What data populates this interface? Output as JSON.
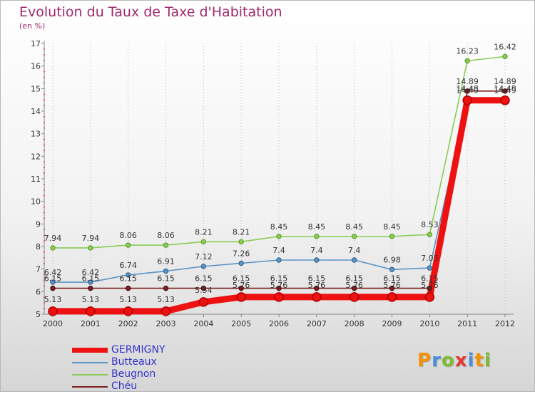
{
  "header": {
    "title": "Evolution du Taux de Taxe d'Habitation",
    "subtitle": "(en %)"
  },
  "logo": {
    "text": "Proxiti",
    "colors": [
      "#f39200",
      "#4a90d9",
      "#7dbb2f",
      "#e53935",
      "#4a90d9",
      "#f39200",
      "#7dbb2f"
    ]
  },
  "chart_data": {
    "type": "line",
    "title": "Evolution du Taux de Taxe d'Habitation",
    "subtitle": "(en %)",
    "xlabel": "",
    "ylabel": "",
    "x": [
      2000,
      2001,
      2002,
      2003,
      2004,
      2005,
      2006,
      2007,
      2008,
      2009,
      2010,
      2011,
      2012
    ],
    "ylim": [
      5,
      17
    ],
    "yticks": [
      5,
      6,
      7,
      8,
      9,
      10,
      11,
      12,
      13,
      14,
      15,
      16,
      17
    ],
    "grid": "vertical dotted",
    "legend_position": "bottom-left",
    "series": [
      {
        "name": "Chéu",
        "color": "#7a1e1e",
        "values": [
          6.15,
          6.15,
          6.15,
          6.15,
          6.15,
          6.15,
          6.15,
          6.15,
          6.15,
          6.15,
          6.15,
          14.89,
          14.89
        ],
        "labels": [
          "6.15",
          "6.15",
          "6.15",
          "6.15",
          "6.15",
          "6.15",
          "6.15",
          "6.15",
          "6.15",
          "6.15",
          "6.15",
          "14.89",
          "14.89"
        ]
      },
      {
        "name": "Beugnon",
        "color": "#88cc55",
        "values": [
          7.94,
          7.94,
          8.06,
          8.06,
          8.21,
          8.21,
          8.45,
          8.45,
          8.45,
          8.45,
          8.53,
          16.23,
          16.42
        ],
        "labels": [
          "7.94",
          "7.94",
          "8.06",
          "8.06",
          "8.21",
          "8.21",
          "8.45",
          "8.45",
          "8.45",
          "8.45",
          "8.53",
          "16.23",
          "16.42"
        ]
      },
      {
        "name": "Butteaux",
        "color": "#5b93c4",
        "values": [
          6.42,
          6.42,
          6.74,
          6.91,
          7.12,
          7.26,
          7.4,
          7.4,
          7.4,
          6.98,
          7.05,
          14.49,
          14.49
        ],
        "labels": [
          "6.42",
          "6.42",
          "6.74",
          "6.91",
          "7.12",
          "7.26",
          "7.4",
          "7.4",
          "7.4",
          "6.98",
          "7.05",
          "14.49",
          "14.49"
        ]
      },
      {
        "name": "GERMIGNY",
        "color": "#ee1111",
        "values": [
          5.13,
          5.13,
          5.13,
          5.13,
          5.54,
          5.76,
          5.76,
          5.76,
          5.76,
          5.76,
          5.76,
          14.48,
          14.48
        ],
        "labels": [
          "5.13",
          "5.13",
          "5.13",
          "5.13",
          "5.54",
          "5.76",
          "5.76",
          "5.76",
          "5.76",
          "5.76",
          "5.76",
          "14.48",
          "14.48"
        ]
      }
    ],
    "legend_order": [
      "GERMIGNY",
      "Butteaux",
      "Beugnon",
      "Chéu"
    ]
  }
}
